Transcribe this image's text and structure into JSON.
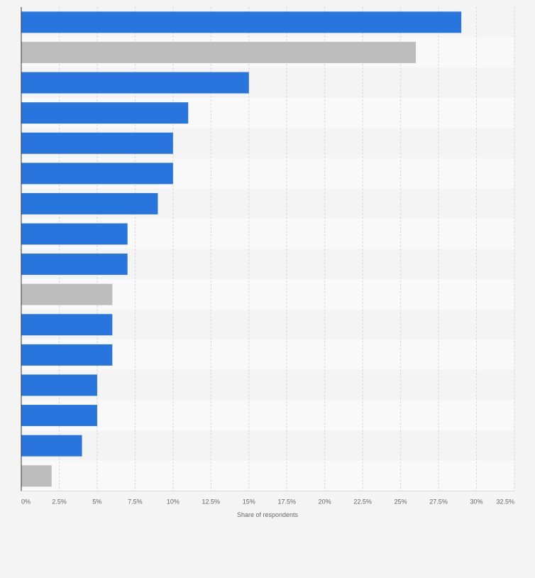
{
  "chart_data": {
    "type": "bar",
    "orientation": "horizontal",
    "xlabel": "Share of respondents",
    "xlim": [
      0,
      32.5
    ],
    "ticks": [
      {
        "value": 0,
        "label": "0%"
      },
      {
        "value": 2.5,
        "label": "2.5%"
      },
      {
        "value": 5,
        "label": "5%"
      },
      {
        "value": 7.5,
        "label": "7.5%"
      },
      {
        "value": 10,
        "label": "10%"
      },
      {
        "value": 12.5,
        "label": "12.5%"
      },
      {
        "value": 15,
        "label": "15%"
      },
      {
        "value": 17.5,
        "label": "17.5%"
      },
      {
        "value": 20,
        "label": "20%"
      },
      {
        "value": 22.5,
        "label": "22.5%"
      },
      {
        "value": 25,
        "label": "25%"
      },
      {
        "value": 27.5,
        "label": "27.5%"
      },
      {
        "value": 30,
        "label": "30%"
      },
      {
        "value": 32.5,
        "label": "32.5%"
      }
    ],
    "grid": true,
    "values": [
      29,
      26,
      15,
      11,
      10,
      10,
      9,
      7,
      7,
      6,
      6,
      6,
      5,
      5,
      4,
      2
    ],
    "highlighted": [
      false,
      true,
      false,
      false,
      false,
      false,
      false,
      false,
      false,
      true,
      false,
      false,
      false,
      false,
      false,
      true
    ],
    "colors": {
      "primary": "#2876dd",
      "highlight": "#bdbdbd",
      "band_light": "#f9f9f9",
      "band_dark": "#f4f4f4",
      "grid": "#d9d9d9",
      "axis": "#333333",
      "tick_text": "#666666"
    }
  }
}
